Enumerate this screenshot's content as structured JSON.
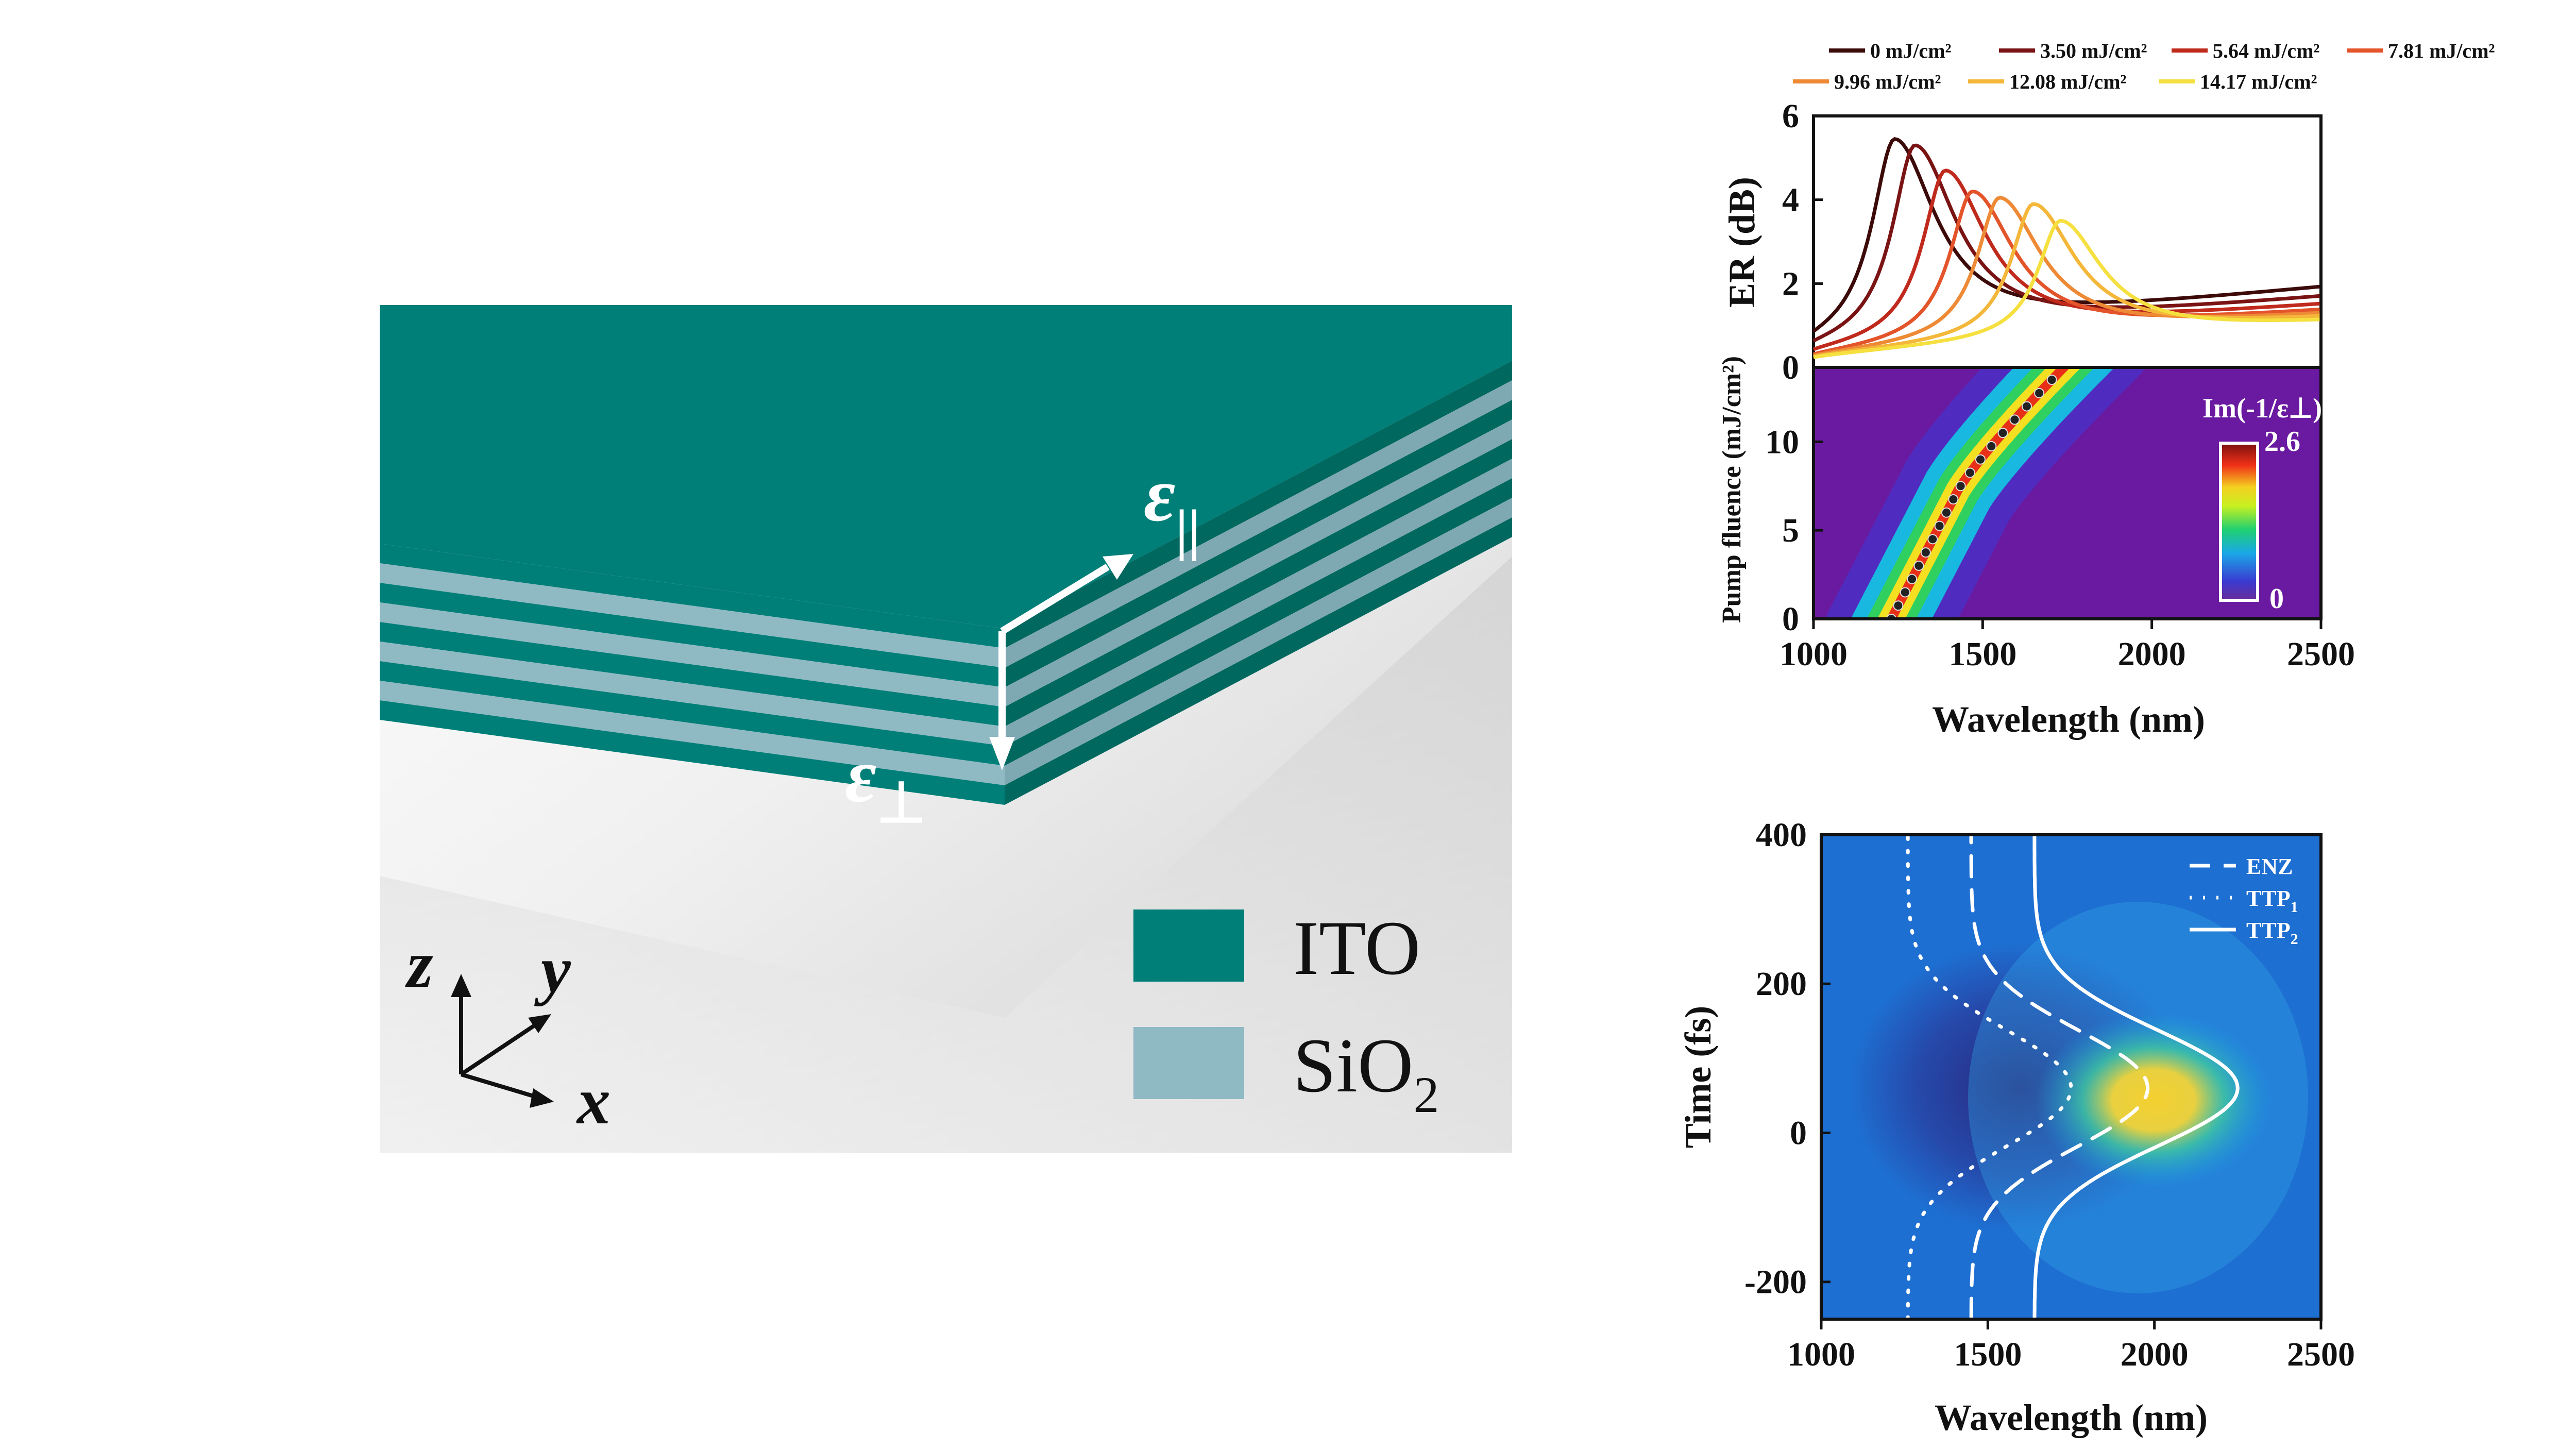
{
  "schematic": {
    "legend": [
      {
        "label": "ITO",
        "color": "#007f78"
      },
      {
        "label": "SiO",
        "sub": "2",
        "color": "#8fb9c3"
      }
    ],
    "eps_parallel": "ε",
    "eps_parallel_sub": "||",
    "eps_perp": "ε",
    "eps_perp_sub": "⊥",
    "axes": {
      "z": "z",
      "y": "y",
      "x": "x"
    },
    "layer_count": 9
  },
  "chart_data": [
    {
      "type": "line",
      "title": "",
      "xlabel": "",
      "ylabel": "ER (dB)",
      "xlim": [
        1000,
        2500
      ],
      "ylim": [
        0,
        6
      ],
      "yticks": [
        0,
        2,
        4,
        6
      ],
      "legend_position": "top",
      "series": [
        {
          "name": "0 mJ/cm²",
          "color": "#3d0a0a",
          "peak_x": 1240,
          "peak_y": 5.45,
          "base": 0.35,
          "tail": 2.05
        },
        {
          "name": "3.50 mJ/cm²",
          "color": "#7a1414",
          "peak_x": 1300,
          "peak_y": 5.3,
          "base": 0.3,
          "tail": 1.8
        },
        {
          "name": "5.64 mJ/cm²",
          "color": "#c02a1c",
          "peak_x": 1390,
          "peak_y": 4.7,
          "base": 0.25,
          "tail": 1.6
        },
        {
          "name": "7.81 mJ/cm²",
          "color": "#e4542a",
          "peak_x": 1470,
          "peak_y": 4.2,
          "base": 0.2,
          "tail": 1.45
        },
        {
          "name": "9.96 mJ/cm²",
          "color": "#ee8a36",
          "peak_x": 1550,
          "peak_y": 4.05,
          "base": 0.2,
          "tail": 1.35
        },
        {
          "name": "12.08 mJ/cm²",
          "color": "#f4b73a",
          "peak_x": 1650,
          "peak_y": 3.9,
          "base": 0.2,
          "tail": 1.25
        },
        {
          "name": "14.17 mJ/cm²",
          "color": "#f5e040",
          "peak_x": 1730,
          "peak_y": 3.5,
          "base": 0.2,
          "tail": 1.15
        }
      ]
    },
    {
      "type": "heatmap",
      "xlabel": "Wavelength (nm)",
      "ylabel": "Pump fluence (mJ/cm²)",
      "xlim": [
        1000,
        2500
      ],
      "ylim": [
        0,
        14.2
      ],
      "xticks": [
        1000,
        1500,
        2000,
        2500
      ],
      "yticks": [
        0,
        5,
        10
      ],
      "colorbar": {
        "label": "Im(-1/ε⊥)",
        "min": "0",
        "max": "2.6"
      },
      "ridge": [
        {
          "fluence": 0,
          "wavelength": 1230
        },
        {
          "fluence": 7,
          "wavelength": 1420
        },
        {
          "fluence": 14.2,
          "wavelength": 1740
        }
      ]
    },
    {
      "type": "heatmap",
      "xlabel": "Wavelength (nm)",
      "ylabel": "Time (fs)",
      "xlim": [
        1000,
        2500
      ],
      "ylim": [
        -250,
        400
      ],
      "xticks": [
        1000,
        1500,
        2000,
        2500
      ],
      "yticks": [
        -200,
        0,
        200,
        400
      ],
      "legend": [
        {
          "name": "ENZ",
          "style": "dashed",
          "base": 1450,
          "peak": 1980
        },
        {
          "name": "TTP",
          "sub": "1",
          "style": "dotted",
          "base": 1260,
          "peak": 1750
        },
        {
          "name": "TTP",
          "sub": "2",
          "style": "solid",
          "base": 1640,
          "peak": 2250
        }
      ],
      "pulse_center_fs": 60,
      "pulse_width_fs": 110
    }
  ]
}
